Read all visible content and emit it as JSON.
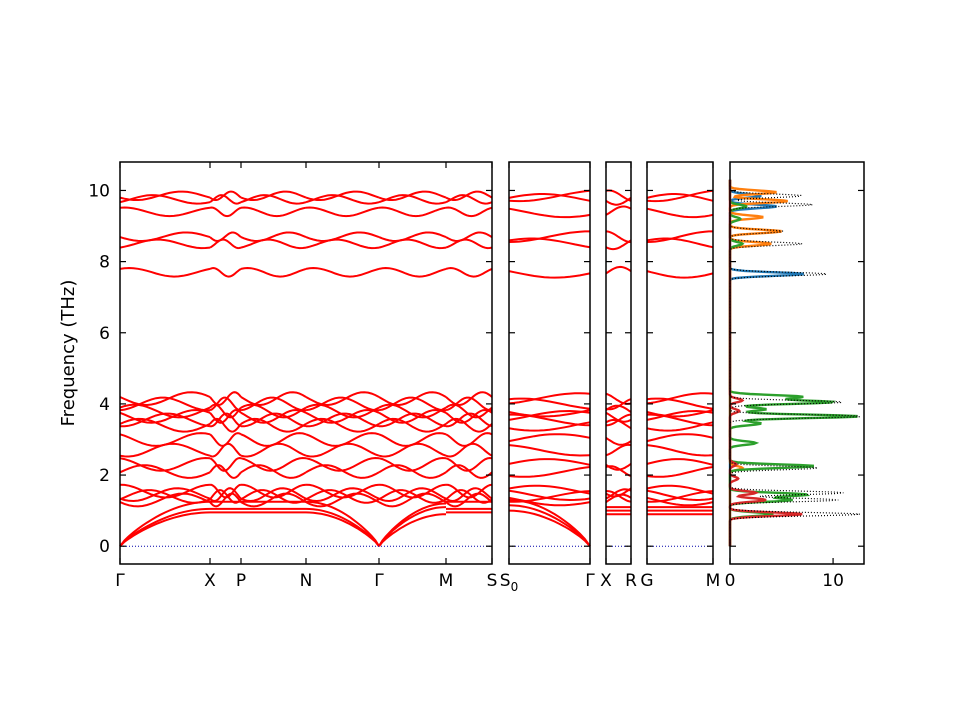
{
  "chart_data": {
    "type": "line",
    "title": "",
    "ylabel": "Frequency (THz)",
    "ylim": [
      -0.5,
      10.8
    ],
    "yticks": [
      0,
      2,
      4,
      6,
      8,
      10
    ],
    "band_color": "#ff0000",
    "zero_line_color": "#0000aa",
    "band_structure_panels": [
      {
        "path_segments": [
          {
            "from": "Γ",
            "to": "X"
          },
          {
            "from": "X",
            "to": "P"
          },
          {
            "from": "P",
            "to": "N"
          },
          {
            "from": "N",
            "to": "Γ"
          },
          {
            "from": "Γ",
            "to": "M"
          },
          {
            "from": "M",
            "to": "S"
          }
        ],
        "tick_labels": [
          "Γ",
          "X",
          "P",
          "N",
          "Γ",
          "M",
          "S"
        ]
      },
      {
        "path_segments": [
          {
            "from": "S0",
            "to": "Γ"
          }
        ],
        "tick_labels": [
          "S0",
          "Γ"
        ]
      },
      {
        "path_segments": [
          {
            "from": "X",
            "to": "R"
          }
        ],
        "tick_labels": [
          "X",
          "R"
        ]
      },
      {
        "path_segments": [
          {
            "from": "G",
            "to": "M"
          }
        ],
        "tick_labels": [
          "G",
          "M"
        ]
      }
    ],
    "branches_at_gamma_THz": [
      0,
      0,
      0,
      1.3,
      1.55,
      1.4,
      1.45,
      2.3,
      2.1,
      2.7,
      3.0,
      3.4,
      3.55,
      3.65,
      3.8,
      4.0,
      4.15,
      7.7,
      8.5,
      8.7,
      9.4,
      9.75,
      9.85
    ],
    "dos_panel": {
      "xlim": [
        0,
        13
      ],
      "xticks": [
        0,
        10
      ],
      "series": [
        {
          "color": "#1f77b4",
          "peaks": [
            {
              "freq": 7.65,
              "value": 7.2
            },
            {
              "freq": 9.55,
              "value": 4.5
            },
            {
              "freq": 9.85,
              "value": 3.0
            }
          ]
        },
        {
          "color": "#ff7f0e",
          "peaks": [
            {
              "freq": 2.2,
              "value": 1.2
            },
            {
              "freq": 8.5,
              "value": 4.0
            },
            {
              "freq": 8.85,
              "value": 5.0
            },
            {
              "freq": 9.25,
              "value": 3.2
            },
            {
              "freq": 9.7,
              "value": 5.6
            },
            {
              "freq": 9.95,
              "value": 4.5
            }
          ]
        },
        {
          "color": "#2ca02c",
          "peaks": [
            {
              "freq": 0.9,
              "value": 4.2
            },
            {
              "freq": 1.3,
              "value": 6.0
            },
            {
              "freq": 1.45,
              "value": 7.5
            },
            {
              "freq": 2.25,
              "value": 8.2
            },
            {
              "freq": 2.9,
              "value": 2.5
            },
            {
              "freq": 3.45,
              "value": 3.0
            },
            {
              "freq": 3.65,
              "value": 12.5
            },
            {
              "freq": 3.85,
              "value": 3.5
            },
            {
              "freq": 4.05,
              "value": 10.0
            },
            {
              "freq": 4.2,
              "value": 7.0
            },
            {
              "freq": 8.5,
              "value": 1.2
            },
            {
              "freq": 9.2,
              "value": 1.0
            },
            {
              "freq": 9.55,
              "value": 1.6
            }
          ]
        },
        {
          "color": "#d62728",
          "peaks": [
            {
              "freq": 0.9,
              "value": 7.0
            },
            {
              "freq": 1.3,
              "value": 3.5
            },
            {
              "freq": 1.5,
              "value": 2.5
            },
            {
              "freq": 1.9,
              "value": 0.8
            },
            {
              "freq": 2.3,
              "value": 0.6
            },
            {
              "freq": 3.8,
              "value": 0.9
            },
            {
              "freq": 4.1,
              "value": 1.2
            }
          ]
        }
      ],
      "total": {
        "style": "dotted",
        "color": "#000000",
        "peaks": [
          {
            "freq": 0.9,
            "value": 12.6
          },
          {
            "freq": 1.3,
            "value": 10.5
          },
          {
            "freq": 1.5,
            "value": 11.0
          },
          {
            "freq": 2.2,
            "value": 8.5
          },
          {
            "freq": 3.65,
            "value": 12.8
          },
          {
            "freq": 4.05,
            "value": 11.0
          },
          {
            "freq": 7.65,
            "value": 9.5
          },
          {
            "freq": 8.5,
            "value": 7.0
          },
          {
            "freq": 8.85,
            "value": 5.2
          },
          {
            "freq": 9.6,
            "value": 8.0
          },
          {
            "freq": 9.85,
            "value": 7.0
          }
        ]
      }
    }
  }
}
